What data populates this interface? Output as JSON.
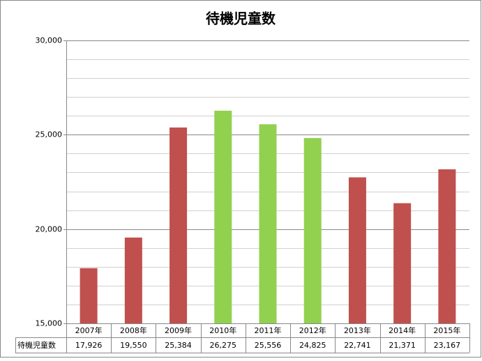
{
  "chart_data": {
    "type": "bar",
    "title": "待機児童数",
    "categories": [
      "2007年",
      "2008年",
      "2009年",
      "2010年",
      "2011年",
      "2012年",
      "2013年",
      "2014年",
      "2015年"
    ],
    "series": [
      {
        "name": "待機児童数",
        "values": [
          17926,
          19550,
          25384,
          26275,
          25556,
          24825,
          22741,
          21371,
          23167
        ],
        "value_labels": [
          "17,926",
          "19,550",
          "25,384",
          "26,275",
          "25,556",
          "24,825",
          "22,741",
          "21,371",
          "23,167"
        ],
        "colors": [
          "#c0504d",
          "#c0504d",
          "#c0504d",
          "#92d050",
          "#92d050",
          "#92d050",
          "#c0504d",
          "#c0504d",
          "#c0504d"
        ]
      }
    ],
    "ylim": [
      15000,
      30000
    ],
    "yticks": [
      {
        "value": 15000,
        "label": "15,000"
      },
      {
        "value": 20000,
        "label": "20,000"
      },
      {
        "value": 25000,
        "label": "25,000"
      },
      {
        "value": 30000,
        "label": "30,000"
      }
    ],
    "minor_yticks": [
      16000,
      17000,
      18000,
      19000,
      21000,
      22000,
      23000,
      24000,
      26000,
      27000,
      28000,
      29000
    ],
    "grid": true,
    "data_table": true
  }
}
